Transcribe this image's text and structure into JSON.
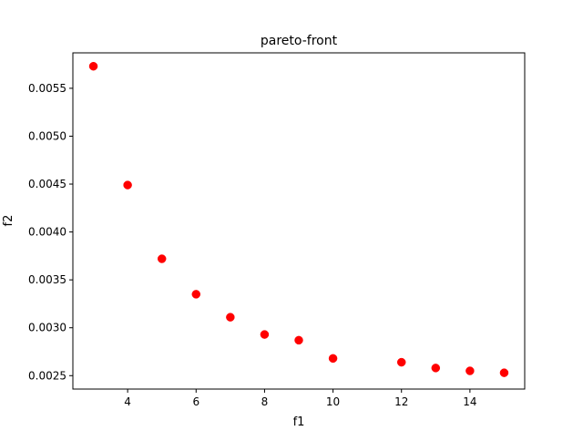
{
  "chart_data": {
    "type": "scatter",
    "title": "pareto-front",
    "xlabel": "f1",
    "ylabel": "f2",
    "xlim": [
      2.4,
      15.6
    ],
    "ylim": [
      0.00236,
      0.00587
    ],
    "xticks": [
      4,
      6,
      8,
      10,
      12,
      14
    ],
    "xtick_labels": [
      "4",
      "6",
      "8",
      "10",
      "12",
      "14"
    ],
    "yticks": [
      0.0025,
      0.003,
      0.0035,
      0.004,
      0.0045,
      0.005,
      0.0055
    ],
    "ytick_labels": [
      "0.0025",
      "0.0030",
      "0.0035",
      "0.0040",
      "0.0045",
      "0.0050",
      "0.0055"
    ],
    "grid": false,
    "marker_color": "#ff0000",
    "points": [
      {
        "x": 3,
        "y": 0.00573
      },
      {
        "x": 4,
        "y": 0.00449
      },
      {
        "x": 5,
        "y": 0.00372
      },
      {
        "x": 6,
        "y": 0.00335
      },
      {
        "x": 7,
        "y": 0.00311
      },
      {
        "x": 8,
        "y": 0.00293
      },
      {
        "x": 9,
        "y": 0.00287
      },
      {
        "x": 10,
        "y": 0.00268
      },
      {
        "x": 12,
        "y": 0.00264
      },
      {
        "x": 13,
        "y": 0.00258
      },
      {
        "x": 14,
        "y": 0.00255
      },
      {
        "x": 15,
        "y": 0.00253
      }
    ]
  }
}
